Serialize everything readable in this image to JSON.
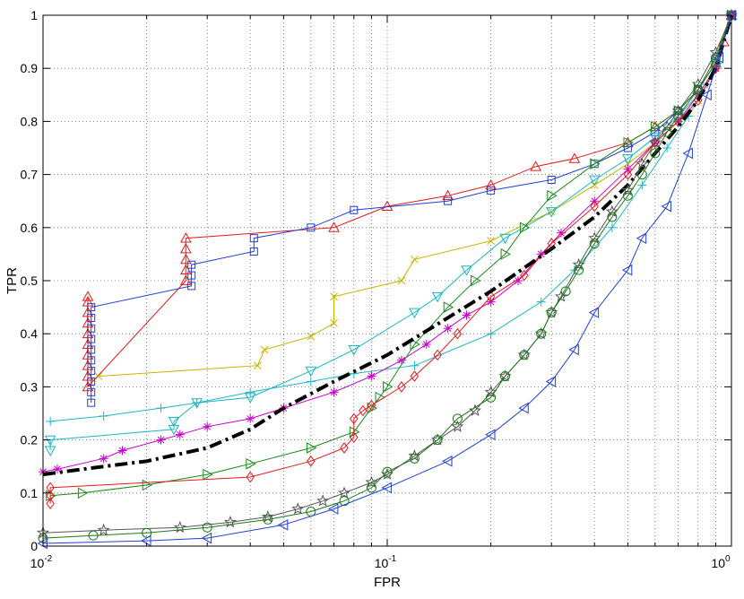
{
  "chart_data": {
    "type": "line",
    "xlabel": "FPR",
    "ylabel": "TPR",
    "xscale": "log",
    "xlim": [
      0.01,
      1
    ],
    "ylim": [
      0,
      1
    ],
    "grid": true,
    "x_ticks": [
      {
        "value": 0.01,
        "base": "10",
        "exp": "-2"
      },
      {
        "value": 0.1,
        "base": "10",
        "exp": "-1"
      },
      {
        "value": 1,
        "base": "10",
        "exp": "0"
      }
    ],
    "y_ticks": [
      "0",
      "0.1",
      "0.2",
      "0.3",
      "0.4",
      "0.5",
      "0.6",
      "0.7",
      "0.8",
      "0.9",
      "1"
    ],
    "series": [
      {
        "color": "#e41a1c",
        "marker": "triangle-up",
        "points": [
          [
            0.0135,
            0.47
          ],
          [
            0.0135,
            0.46
          ],
          [
            0.0135,
            0.44
          ],
          [
            0.0135,
            0.42
          ],
          [
            0.0135,
            0.4
          ],
          [
            0.0135,
            0.38
          ],
          [
            0.0135,
            0.36
          ],
          [
            0.0135,
            0.34
          ],
          [
            0.0135,
            0.32
          ],
          [
            0.0135,
            0.3
          ],
          [
            0.026,
            0.5
          ],
          [
            0.026,
            0.52
          ],
          [
            0.026,
            0.54
          ],
          [
            0.026,
            0.56
          ],
          [
            0.026,
            0.58
          ],
          [
            0.07,
            0.6
          ],
          [
            0.1,
            0.64
          ],
          [
            0.15,
            0.66
          ],
          [
            0.2,
            0.68
          ],
          [
            0.27,
            0.715
          ],
          [
            0.35,
            0.73
          ],
          [
            0.5,
            0.76
          ],
          [
            0.6,
            0.79
          ],
          [
            0.7,
            0.82
          ],
          [
            0.8,
            0.86
          ],
          [
            0.9,
            0.91
          ],
          [
            0.95,
            0.95
          ],
          [
            1,
            1
          ]
        ]
      },
      {
        "color": "#1f3fd9",
        "marker": "square",
        "points": [
          [
            0.0138,
            0.27
          ],
          [
            0.0138,
            0.29
          ],
          [
            0.0138,
            0.31
          ],
          [
            0.0138,
            0.33
          ],
          [
            0.0138,
            0.35
          ],
          [
            0.0138,
            0.37
          ],
          [
            0.0138,
            0.39
          ],
          [
            0.0138,
            0.41
          ],
          [
            0.0138,
            0.43
          ],
          [
            0.0138,
            0.45
          ],
          [
            0.027,
            0.49
          ],
          [
            0.027,
            0.51
          ],
          [
            0.027,
            0.53
          ],
          [
            0.041,
            0.555
          ],
          [
            0.041,
            0.58
          ],
          [
            0.06,
            0.6
          ],
          [
            0.08,
            0.633
          ],
          [
            0.15,
            0.65
          ],
          [
            0.2,
            0.67
          ],
          [
            0.3,
            0.69
          ],
          [
            0.4,
            0.72
          ],
          [
            0.5,
            0.75
          ],
          [
            0.6,
            0.78
          ],
          [
            0.7,
            0.82
          ],
          [
            0.8,
            0.86
          ],
          [
            0.9,
            0.91
          ],
          [
            1,
            1
          ]
        ]
      },
      {
        "color": "#c8b400",
        "marker": "x",
        "points": [
          [
            0.0145,
            0.32
          ],
          [
            0.042,
            0.34
          ],
          [
            0.044,
            0.37
          ],
          [
            0.06,
            0.395
          ],
          [
            0.07,
            0.42
          ],
          [
            0.07,
            0.47
          ],
          [
            0.11,
            0.5
          ],
          [
            0.12,
            0.54
          ],
          [
            0.2,
            0.575
          ],
          [
            0.3,
            0.63
          ],
          [
            0.4,
            0.68
          ],
          [
            0.5,
            0.72
          ],
          [
            0.6,
            0.76
          ],
          [
            0.7,
            0.8
          ],
          [
            0.8,
            0.84
          ],
          [
            0.9,
            0.9
          ],
          [
            1,
            1
          ]
        ]
      },
      {
        "color": "#16b8c4",
        "marker": "triangle-down",
        "points": [
          [
            0.0105,
            0.18
          ],
          [
            0.0105,
            0.2
          ],
          [
            0.024,
            0.22
          ],
          [
            0.024,
            0.235
          ],
          [
            0.028,
            0.27
          ],
          [
            0.04,
            0.28
          ],
          [
            0.06,
            0.33
          ],
          [
            0.08,
            0.37
          ],
          [
            0.12,
            0.44
          ],
          [
            0.14,
            0.47
          ],
          [
            0.17,
            0.52
          ],
          [
            0.22,
            0.58
          ],
          [
            0.3,
            0.63
          ],
          [
            0.4,
            0.69
          ],
          [
            0.5,
            0.73
          ],
          [
            0.6,
            0.77
          ],
          [
            0.7,
            0.81
          ],
          [
            0.8,
            0.85
          ],
          [
            0.9,
            0.9
          ],
          [
            1,
            1
          ]
        ]
      },
      {
        "color": "#1bb6c9",
        "marker": "plus",
        "points": [
          [
            0.0105,
            0.235
          ],
          [
            0.015,
            0.245
          ],
          [
            0.022,
            0.26
          ],
          [
            0.028,
            0.27
          ],
          [
            0.04,
            0.29
          ],
          [
            0.06,
            0.31
          ],
          [
            0.08,
            0.325
          ],
          [
            0.12,
            0.34
          ],
          [
            0.2,
            0.4
          ],
          [
            0.28,
            0.46
          ],
          [
            0.35,
            0.52
          ],
          [
            0.45,
            0.6
          ],
          [
            0.55,
            0.68
          ],
          [
            0.65,
            0.75
          ],
          [
            0.75,
            0.81
          ],
          [
            0.85,
            0.87
          ],
          [
            0.92,
            0.93
          ],
          [
            1,
            1
          ]
        ]
      },
      {
        "color": "#cc00cc",
        "marker": "asterisk",
        "points": [
          [
            0.01,
            0.14
          ],
          [
            0.011,
            0.145
          ],
          [
            0.015,
            0.165
          ],
          [
            0.017,
            0.18
          ],
          [
            0.022,
            0.2
          ],
          [
            0.025,
            0.21
          ],
          [
            0.03,
            0.225
          ],
          [
            0.04,
            0.24
          ],
          [
            0.05,
            0.26
          ],
          [
            0.07,
            0.29
          ],
          [
            0.09,
            0.32
          ],
          [
            0.11,
            0.35
          ],
          [
            0.13,
            0.38
          ],
          [
            0.15,
            0.41
          ],
          [
            0.17,
            0.435
          ],
          [
            0.2,
            0.46
          ],
          [
            0.24,
            0.5
          ],
          [
            0.28,
            0.55
          ],
          [
            0.32,
            0.59
          ],
          [
            0.4,
            0.65
          ],
          [
            0.5,
            0.71
          ],
          [
            0.6,
            0.76
          ],
          [
            0.7,
            0.8
          ],
          [
            0.8,
            0.85
          ],
          [
            0.9,
            0.9
          ],
          [
            1,
            1
          ]
        ]
      },
      {
        "color": "#1a8a1a",
        "marker": "triangle-right",
        "points": [
          [
            0.0105,
            0.095
          ],
          [
            0.013,
            0.1
          ],
          [
            0.02,
            0.115
          ],
          [
            0.03,
            0.135
          ],
          [
            0.04,
            0.155
          ],
          [
            0.06,
            0.185
          ],
          [
            0.08,
            0.215
          ],
          [
            0.09,
            0.26
          ],
          [
            0.095,
            0.28
          ],
          [
            0.1,
            0.3
          ],
          [
            0.12,
            0.38
          ],
          [
            0.15,
            0.45
          ],
          [
            0.18,
            0.5
          ],
          [
            0.22,
            0.55
          ],
          [
            0.25,
            0.6
          ],
          [
            0.3,
            0.66
          ],
          [
            0.4,
            0.72
          ],
          [
            0.5,
            0.76
          ],
          [
            0.6,
            0.79
          ],
          [
            0.7,
            0.82
          ],
          [
            0.8,
            0.86
          ],
          [
            0.9,
            0.91
          ],
          [
            1,
            1
          ]
        ]
      },
      {
        "color": "#e41a1c",
        "marker": "diamond",
        "points": [
          [
            0.0105,
            0.08
          ],
          [
            0.0105,
            0.095
          ],
          [
            0.0105,
            0.11
          ],
          [
            0.04,
            0.13
          ],
          [
            0.06,
            0.16
          ],
          [
            0.075,
            0.185
          ],
          [
            0.08,
            0.205
          ],
          [
            0.08,
            0.24
          ],
          [
            0.085,
            0.255
          ],
          [
            0.09,
            0.265
          ],
          [
            0.11,
            0.3
          ],
          [
            0.12,
            0.32
          ],
          [
            0.14,
            0.36
          ],
          [
            0.16,
            0.4
          ],
          [
            0.2,
            0.47
          ],
          [
            0.25,
            0.51
          ],
          [
            0.3,
            0.57
          ],
          [
            0.4,
            0.64
          ],
          [
            0.5,
            0.7
          ],
          [
            0.6,
            0.76
          ],
          [
            0.7,
            0.8
          ],
          [
            0.8,
            0.84
          ],
          [
            0.9,
            0.9
          ],
          [
            1,
            1
          ]
        ]
      },
      {
        "color": "#000000",
        "marker": "none",
        "dash": "dashdot",
        "width": 4,
        "points": [
          [
            0.01,
            0.135
          ],
          [
            0.015,
            0.15
          ],
          [
            0.02,
            0.16
          ],
          [
            0.03,
            0.185
          ],
          [
            0.04,
            0.22
          ],
          [
            0.05,
            0.26
          ],
          [
            0.07,
            0.31
          ],
          [
            0.1,
            0.36
          ],
          [
            0.15,
            0.43
          ],
          [
            0.2,
            0.48
          ],
          [
            0.3,
            0.56
          ],
          [
            0.4,
            0.62
          ],
          [
            0.5,
            0.68
          ],
          [
            0.6,
            0.74
          ],
          [
            0.7,
            0.79
          ],
          [
            0.8,
            0.84
          ],
          [
            0.9,
            0.9
          ],
          [
            1,
            1
          ]
        ]
      },
      {
        "color": "#555555",
        "marker": "star",
        "points": [
          [
            0.01,
            0.025
          ],
          [
            0.015,
            0.03
          ],
          [
            0.025,
            0.035
          ],
          [
            0.035,
            0.045
          ],
          [
            0.045,
            0.055
          ],
          [
            0.055,
            0.07
          ],
          [
            0.065,
            0.085
          ],
          [
            0.075,
            0.1
          ],
          [
            0.09,
            0.12
          ],
          [
            0.1,
            0.135
          ],
          [
            0.12,
            0.17
          ],
          [
            0.14,
            0.2
          ],
          [
            0.16,
            0.225
          ],
          [
            0.18,
            0.255
          ],
          [
            0.2,
            0.29
          ],
          [
            0.22,
            0.32
          ],
          [
            0.25,
            0.36
          ],
          [
            0.28,
            0.4
          ],
          [
            0.3,
            0.44
          ],
          [
            0.32,
            0.47
          ],
          [
            0.36,
            0.53
          ],
          [
            0.4,
            0.58
          ],
          [
            0.45,
            0.63
          ],
          [
            0.5,
            0.67
          ],
          [
            0.55,
            0.72
          ],
          [
            0.6,
            0.76
          ],
          [
            0.65,
            0.79
          ],
          [
            0.7,
            0.82
          ],
          [
            0.8,
            0.87
          ],
          [
            0.9,
            0.93
          ],
          [
            1,
            1
          ]
        ]
      },
      {
        "color": "#1a7a1a",
        "marker": "circle",
        "points": [
          [
            0.01,
            0.015
          ],
          [
            0.014,
            0.02
          ],
          [
            0.02,
            0.025
          ],
          [
            0.03,
            0.035
          ],
          [
            0.045,
            0.05
          ],
          [
            0.06,
            0.065
          ],
          [
            0.075,
            0.085
          ],
          [
            0.09,
            0.11
          ],
          [
            0.1,
            0.14
          ],
          [
            0.12,
            0.165
          ],
          [
            0.14,
            0.2
          ],
          [
            0.16,
            0.24
          ],
          [
            0.2,
            0.28
          ],
          [
            0.22,
            0.32
          ],
          [
            0.25,
            0.36
          ],
          [
            0.28,
            0.4
          ],
          [
            0.3,
            0.44
          ],
          [
            0.33,
            0.48
          ],
          [
            0.36,
            0.52
          ],
          [
            0.4,
            0.57
          ],
          [
            0.45,
            0.62
          ],
          [
            0.5,
            0.66
          ],
          [
            0.55,
            0.7
          ],
          [
            0.6,
            0.74
          ],
          [
            0.65,
            0.78
          ],
          [
            0.7,
            0.81
          ],
          [
            0.8,
            0.86
          ],
          [
            0.9,
            0.92
          ],
          [
            1,
            1
          ]
        ]
      },
      {
        "color": "#1f3fd9",
        "marker": "triangle-left",
        "points": [
          [
            0.01,
            0.005
          ],
          [
            0.02,
            0.01
          ],
          [
            0.03,
            0.015
          ],
          [
            0.05,
            0.04
          ],
          [
            0.07,
            0.07
          ],
          [
            0.1,
            0.11
          ],
          [
            0.15,
            0.16
          ],
          [
            0.2,
            0.21
          ],
          [
            0.25,
            0.26
          ],
          [
            0.3,
            0.31
          ],
          [
            0.35,
            0.37
          ],
          [
            0.4,
            0.44
          ],
          [
            0.5,
            0.52
          ],
          [
            0.55,
            0.58
          ],
          [
            0.65,
            0.64
          ],
          [
            0.75,
            0.74
          ],
          [
            0.85,
            0.85
          ],
          [
            0.92,
            0.92
          ],
          [
            1,
            1
          ]
        ]
      }
    ]
  }
}
